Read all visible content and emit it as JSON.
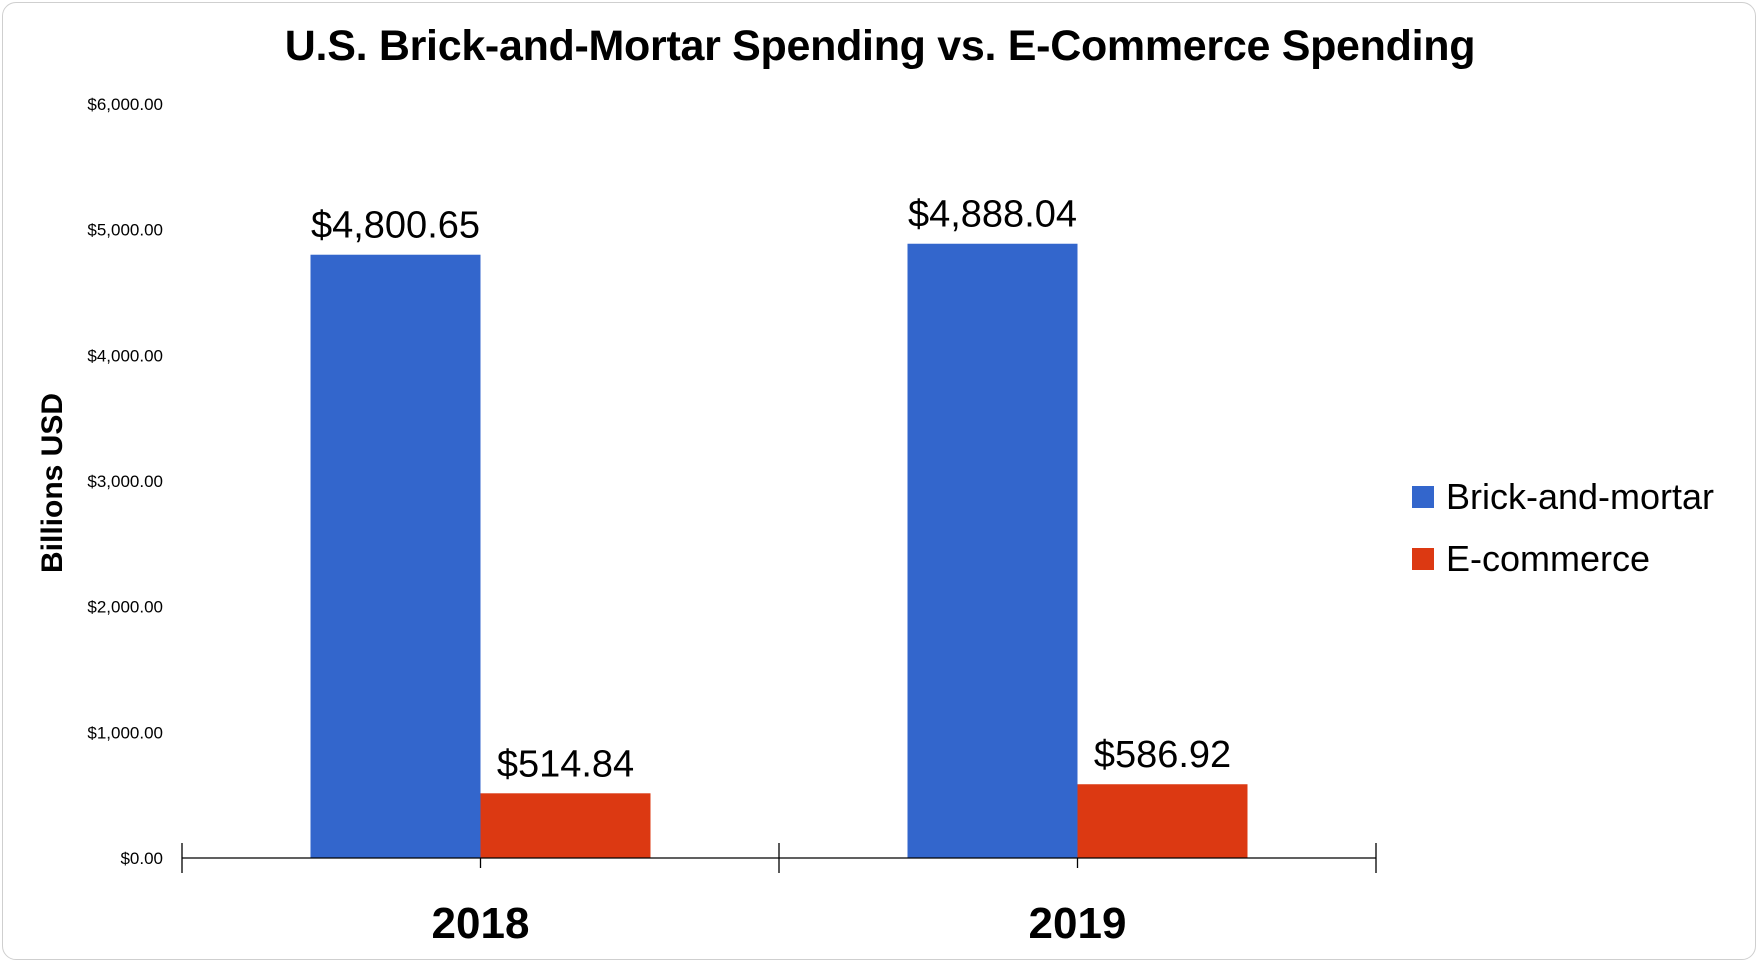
{
  "chart_data": {
    "type": "bar",
    "title": "U.S. Brick-and-Mortar Spending vs. E-Commerce Spending",
    "xlabel": "",
    "ylabel": "Billions USD",
    "categories": [
      "2018",
      "2019"
    ],
    "series": [
      {
        "name": "Brick-and-mortar",
        "color": "#3366cc",
        "values": [
          4800.65,
          4888.04
        ],
        "labels": [
          "$4,800.65",
          "$4,888.04"
        ]
      },
      {
        "name": "E-commerce",
        "color": "#dc3912",
        "values": [
          514.84,
          586.92
        ],
        "labels": [
          "$514.84",
          "$586.92"
        ]
      }
    ],
    "ylim": [
      0,
      6000
    ],
    "yticks": [
      0,
      1000,
      2000,
      3000,
      4000,
      5000,
      6000
    ],
    "ytick_labels": [
      "$0.00",
      "$1,000.00",
      "$2,000.00",
      "$3,000.00",
      "$4,000.00",
      "$5,000.00",
      "$6,000.00"
    ],
    "grid": false,
    "legend_position": "right"
  }
}
